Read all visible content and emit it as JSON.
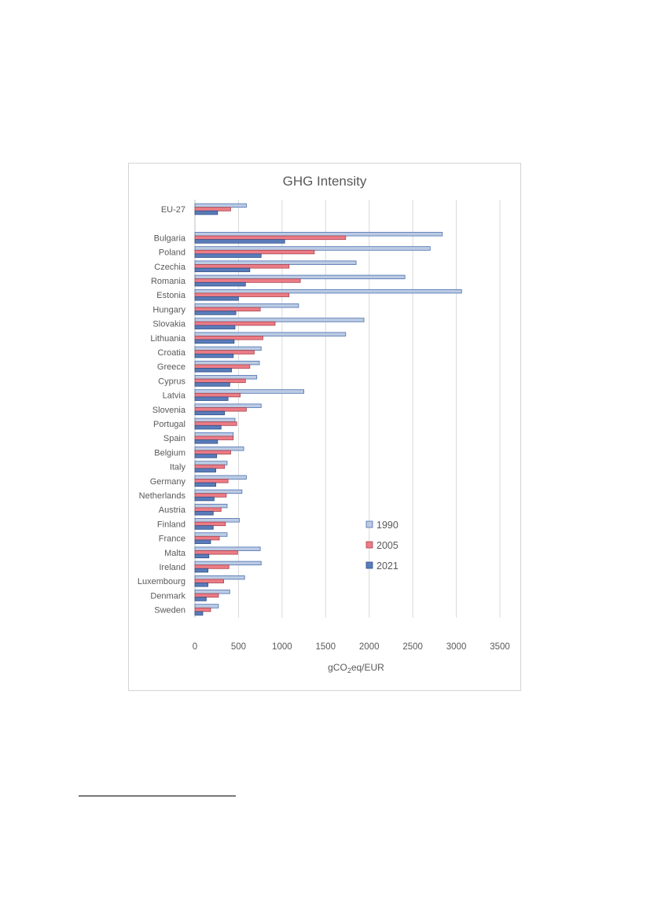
{
  "chart_data": {
    "type": "bar",
    "orientation": "horizontal",
    "title": "GHG Intensity",
    "xlabel": {
      "main": "gCO",
      "sub": "2",
      "rest": "eq/EUR"
    },
    "xlim": [
      0,
      3500
    ],
    "xticks": [
      0,
      500,
      1000,
      1500,
      2000,
      2500,
      3000,
      3500
    ],
    "grid": "vertical",
    "legend_position": "bottom-right",
    "categories": [
      "EU-27",
      "",
      "Bulgaria",
      "Poland",
      "Czechia",
      "Romania",
      "Estonia",
      "Hungary",
      "Slovakia",
      "Lithuania",
      "Croatia",
      "Greece",
      "Cyprus",
      "Latvia",
      "Slovenia",
      "Portugal",
      "Spain",
      "Belgium",
      "Italy",
      "Germany",
      "Netherlands",
      "Austria",
      "Finland",
      "France",
      "Malta",
      "Ireland",
      "Luxembourg",
      "Denmark",
      "Sweden"
    ],
    "series": [
      {
        "name": "1990",
        "color": "#bccbe3",
        "stroke": "#4a6fb0",
        "values": [
          590,
          null,
          2840,
          2700,
          1850,
          2410,
          3060,
          1190,
          1940,
          1730,
          760,
          740,
          710,
          1250,
          760,
          460,
          440,
          560,
          370,
          590,
          540,
          370,
          510,
          370,
          750,
          760,
          570,
          400,
          270
        ]
      },
      {
        "name": "2005",
        "color": "#ec7c86",
        "stroke": "#a8414b",
        "values": [
          410,
          null,
          1730,
          1370,
          1080,
          1210,
          1080,
          750,
          920,
          780,
          680,
          630,
          580,
          520,
          590,
          480,
          440,
          410,
          340,
          380,
          360,
          300,
          350,
          280,
          490,
          390,
          330,
          270,
          180
        ]
      },
      {
        "name": "2021",
        "color": "#5a7cb9",
        "stroke": "#2f4f8a",
        "values": [
          260,
          null,
          1030,
          760,
          630,
          580,
          500,
          470,
          460,
          450,
          440,
          420,
          400,
          380,
          340,
          300,
          260,
          250,
          240,
          240,
          220,
          210,
          210,
          180,
          160,
          150,
          150,
          130,
          90
        ]
      }
    ]
  }
}
